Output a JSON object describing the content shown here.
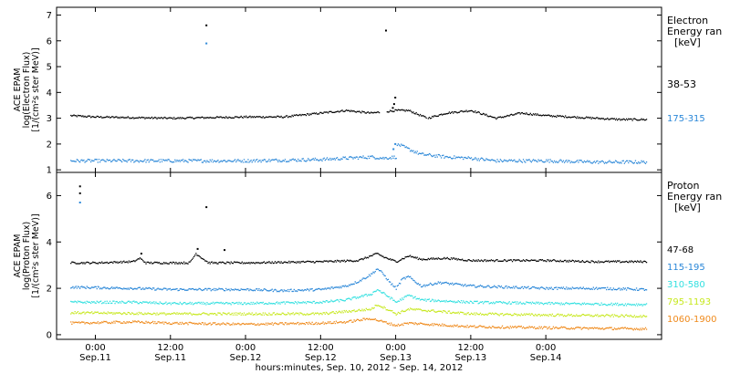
{
  "chart_data": [
    {
      "type": "scatter",
      "panel": "electron",
      "ylabel_lines": [
        "ACE EPAM",
        "log(Electron Flux)",
        "[1/(cm²s ster MeV)]"
      ],
      "ylim": [
        0.9,
        7.3
      ],
      "yticks": [
        1,
        2,
        3,
        4,
        5,
        6,
        7
      ],
      "legend_title": [
        "Electron",
        "Energy ran",
        "[keV]"
      ],
      "series": [
        {
          "name": "38-53",
          "color": "#000000",
          "noise": 0.035,
          "points": [
            [
              -4,
              3.1
            ],
            [
              0,
              3.05
            ],
            [
              12,
              3.0
            ],
            [
              24,
              3.05
            ],
            [
              30,
              3.05
            ],
            [
              36,
              3.2
            ],
            [
              40,
              3.3
            ],
            [
              44,
              3.2
            ],
            [
              48,
              3.3
            ],
            [
              50,
              3.3
            ],
            [
              53,
              3.0
            ],
            [
              56,
              3.2
            ],
            [
              58,
              3.25
            ],
            [
              60,
              3.3
            ],
            [
              64,
              3.0
            ],
            [
              68,
              3.2
            ],
            [
              72,
              3.1
            ],
            [
              80,
              3.0
            ],
            [
              84,
              2.95
            ],
            [
              88,
              2.95
            ]
          ],
          "gaps": [
            [
              45.3,
              46.5
            ],
            [
              52.8,
              53.1
            ]
          ],
          "outliers": [
            [
              17.6,
              6.6
            ],
            [
              46.3,
              6.4
            ],
            [
              47.4,
              3.4
            ],
            [
              47.6,
              3.55
            ],
            [
              47.8,
              3.8
            ]
          ]
        },
        {
          "name": "175-315",
          "color": "#2a87d8",
          "noise": 0.06,
          "points": [
            [
              -4,
              1.35
            ],
            [
              0,
              1.35
            ],
            [
              12,
              1.35
            ],
            [
              24,
              1.35
            ],
            [
              36,
              1.4
            ],
            [
              44,
              1.5
            ],
            [
              46,
              1.45
            ],
            [
              48,
              1.5
            ],
            [
              48.2,
              2.0
            ],
            [
              50,
              1.8
            ],
            [
              52,
              1.6
            ],
            [
              56,
              1.5
            ],
            [
              60,
              1.45
            ],
            [
              64,
              1.35
            ],
            [
              72,
              1.35
            ],
            [
              80,
              1.3
            ],
            [
              84,
              1.3
            ],
            [
              88,
              1.3
            ]
          ],
          "gaps": [],
          "outliers": [
            [
              17.6,
              5.9
            ],
            [
              47.5,
              1.8
            ],
            [
              47.8,
              2.0
            ]
          ]
        }
      ]
    },
    {
      "type": "scatter",
      "panel": "proton",
      "ylabel_lines": [
        "ACE EPAM",
        "log(Proton Flux)",
        "[1/(cm²s ster MeV)]"
      ],
      "ylim": [
        -0.2,
        7.0
      ],
      "yticks": [
        0,
        2,
        4,
        6
      ],
      "legend_title": [
        "Proton",
        "Energy ran",
        "[keV]"
      ],
      "series": [
        {
          "name": "47-68",
          "color": "#000000",
          "noise": 0.04,
          "points": [
            [
              -4,
              3.1
            ],
            [
              0,
              3.1
            ],
            [
              6,
              3.15
            ],
            [
              7,
              3.3
            ],
            [
              8,
              3.1
            ],
            [
              15,
              3.1
            ],
            [
              16,
              3.5
            ],
            [
              17,
              3.3
            ],
            [
              18,
              3.1
            ],
            [
              24,
              3.1
            ],
            [
              36,
              3.15
            ],
            [
              42,
              3.2
            ],
            [
              45,
              3.5
            ],
            [
              46,
              3.35
            ],
            [
              48,
              3.15
            ],
            [
              50,
              3.4
            ],
            [
              52,
              3.25
            ],
            [
              56,
              3.3
            ],
            [
              60,
              3.2
            ],
            [
              72,
              3.2
            ],
            [
              80,
              3.15
            ],
            [
              88,
              3.15
            ]
          ],
          "gaps": [],
          "outliers": [
            [
              -2.6,
              6.4
            ],
            [
              -2.6,
              6.1
            ],
            [
              7.2,
              3.5
            ],
            [
              16.2,
              3.7
            ],
            [
              17.6,
              5.5
            ],
            [
              20.5,
              3.65
            ]
          ]
        },
        {
          "name": "115-195",
          "color": "#2a87d8",
          "noise": 0.05,
          "points": [
            [
              -4,
              2.05
            ],
            [
              6,
              2.0
            ],
            [
              12,
              1.95
            ],
            [
              24,
              1.95
            ],
            [
              30,
              1.9
            ],
            [
              36,
              1.95
            ],
            [
              40,
              2.1
            ],
            [
              42,
              2.3
            ],
            [
              44,
              2.6
            ],
            [
              45,
              2.85
            ],
            [
              46,
              2.6
            ],
            [
              47,
              2.25
            ],
            [
              48,
              2.0
            ],
            [
              49,
              2.4
            ],
            [
              50,
              2.5
            ],
            [
              52,
              2.1
            ],
            [
              55,
              2.25
            ],
            [
              60,
              2.1
            ],
            [
              72,
              2.0
            ],
            [
              80,
              2.0
            ],
            [
              88,
              1.95
            ]
          ],
          "gaps": [],
          "outliers": [
            [
              -2.6,
              5.7
            ]
          ]
        },
        {
          "name": "310-580",
          "color": "#33e0e0",
          "noise": 0.05,
          "points": [
            [
              -4,
              1.4
            ],
            [
              6,
              1.4
            ],
            [
              12,
              1.35
            ],
            [
              24,
              1.35
            ],
            [
              36,
              1.4
            ],
            [
              40,
              1.5
            ],
            [
              44,
              1.75
            ],
            [
              45,
              1.95
            ],
            [
              47,
              1.6
            ],
            [
              48,
              1.4
            ],
            [
              50,
              1.7
            ],
            [
              52,
              1.5
            ],
            [
              60,
              1.4
            ],
            [
              72,
              1.35
            ],
            [
              88,
              1.3
            ]
          ],
          "gaps": [],
          "outliers": []
        },
        {
          "name": "795-1193",
          "color": "#c7e81f",
          "noise": 0.05,
          "points": [
            [
              -4,
              0.95
            ],
            [
              12,
              0.9
            ],
            [
              24,
              0.9
            ],
            [
              36,
              0.9
            ],
            [
              44,
              1.1
            ],
            [
              45,
              1.3
            ],
            [
              47,
              1.05
            ],
            [
              48,
              0.9
            ],
            [
              50,
              1.1
            ],
            [
              60,
              0.9
            ],
            [
              72,
              0.85
            ],
            [
              88,
              0.8
            ]
          ],
          "gaps": [],
          "outliers": []
        },
        {
          "name": "1060-1900",
          "color": "#ef8a1c",
          "noise": 0.05,
          "points": [
            [
              -4,
              0.5
            ],
            [
              6,
              0.55
            ],
            [
              12,
              0.5
            ],
            [
              24,
              0.45
            ],
            [
              36,
              0.5
            ],
            [
              40,
              0.55
            ],
            [
              44,
              0.7
            ],
            [
              46,
              0.55
            ],
            [
              48,
              0.4
            ],
            [
              50,
              0.5
            ],
            [
              60,
              0.35
            ],
            [
              72,
              0.3
            ],
            [
              88,
              0.25
            ]
          ],
          "gaps": [],
          "outliers": []
        }
      ]
    }
  ],
  "xaxis": {
    "xlim": [
      -6.2,
      90.5
    ],
    "ticks": [
      {
        "hours": 0,
        "time": "0:00",
        "date": "Sep.11"
      },
      {
        "hours": 12,
        "time": "12:00",
        "date": "Sep.11"
      },
      {
        "hours": 24,
        "time": "0:00",
        "date": "Sep.12"
      },
      {
        "hours": 36,
        "time": "12:00",
        "date": "Sep.12"
      },
      {
        "hours": 48,
        "time": "0:00",
        "date": "Sep.13"
      },
      {
        "hours": 60,
        "time": "12:00",
        "date": "Sep.13"
      },
      {
        "hours": 72,
        "time": "0:00",
        "date": "Sep.14"
      }
    ],
    "data_end_hours": 88,
    "label": "hours:minutes, Sep. 10, 2012 - Sep. 14, 2012"
  }
}
